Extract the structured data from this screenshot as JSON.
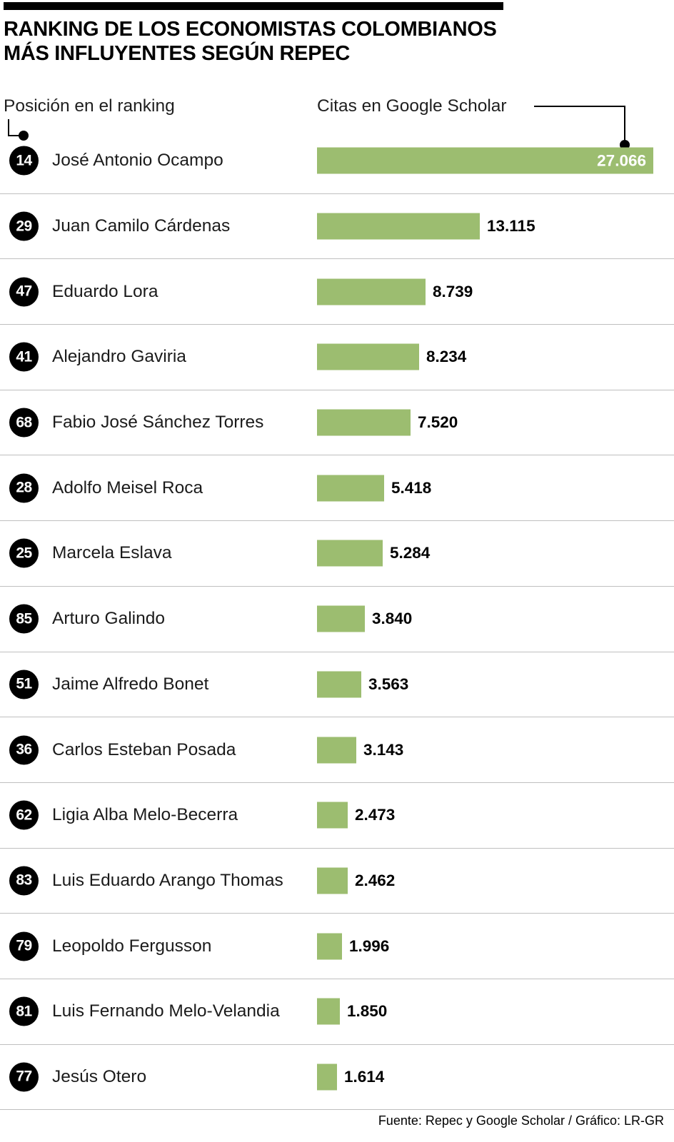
{
  "title": {
    "line1": "RANKING DE LOS ECONOMISTAS COLOMBIANOS",
    "line2": "MÁS INFLUYENTES SEGÚN REPEC"
  },
  "headers": {
    "left": "Posición en el ranking",
    "right": "Citas en Google Scholar"
  },
  "footer": "Fuente: Repec y Google Scholar / Gráfico: LR-GR",
  "colors": {
    "bar": "#9cbd70",
    "badge": "#000000",
    "divider": "#bfbfbf"
  },
  "chart_data": {
    "type": "bar",
    "orientation": "horizontal",
    "title": "Ranking de los economistas colombianos más influyentes según Repec",
    "category_label": "Posición en el ranking",
    "value_label": "Citas en Google Scholar",
    "xlim": [
      0,
      27066
    ],
    "max_value": 27066,
    "grid": false,
    "legend": false,
    "rows": [
      {
        "rank": "14",
        "name": "José Antonio Ocampo",
        "citations": 27066,
        "label": "27.066",
        "label_inside": true
      },
      {
        "rank": "29",
        "name": "Juan Camilo Cárdenas",
        "citations": 13115,
        "label": "13.115",
        "label_inside": false
      },
      {
        "rank": "47",
        "name": "Eduardo Lora",
        "citations": 8739,
        "label": "8.739",
        "label_inside": false
      },
      {
        "rank": "41",
        "name": "Alejandro Gaviria",
        "citations": 8234,
        "label": "8.234",
        "label_inside": false
      },
      {
        "rank": "68",
        "name": "Fabio José Sánchez Torres",
        "citations": 7520,
        "label": "7.520",
        "label_inside": false
      },
      {
        "rank": "28",
        "name": "Adolfo Meisel Roca",
        "citations": 5418,
        "label": "5.418",
        "label_inside": false
      },
      {
        "rank": "25",
        "name": "Marcela Eslava",
        "citations": 5284,
        "label": "5.284",
        "label_inside": false
      },
      {
        "rank": "85",
        "name": "Arturo Galindo",
        "citations": 3840,
        "label": "3.840",
        "label_inside": false
      },
      {
        "rank": "51",
        "name": "Jaime Alfredo Bonet",
        "citations": 3563,
        "label": "3.563",
        "label_inside": false
      },
      {
        "rank": "36",
        "name": "Carlos Esteban Posada",
        "citations": 3143,
        "label": "3.143",
        "label_inside": false
      },
      {
        "rank": "62",
        "name": "Ligia Alba Melo-Becerra",
        "citations": 2473,
        "label": "2.473",
        "label_inside": false
      },
      {
        "rank": "83",
        "name": "Luis Eduardo Arango Thomas",
        "citations": 2462,
        "label": "2.462",
        "label_inside": false
      },
      {
        "rank": "79",
        "name": "Leopoldo Fergusson",
        "citations": 1996,
        "label": "1.996",
        "label_inside": false
      },
      {
        "rank": "81",
        "name": "Luis Fernando Melo-Velandia",
        "citations": 1850,
        "label": "1.850",
        "label_inside": false
      },
      {
        "rank": "77",
        "name": "Jesús Otero",
        "citations": 1614,
        "label": "1.614",
        "label_inside": false
      }
    ]
  }
}
